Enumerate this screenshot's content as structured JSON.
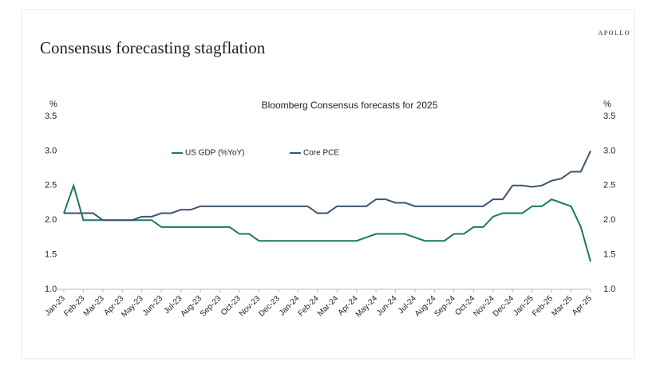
{
  "brand": "APOLLO",
  "chart_data": {
    "type": "line",
    "title": "Consensus forecasting stagflation",
    "subtitle": "Bloomberg Consensus forecasts for 2025",
    "y_unit": "%",
    "categories": [
      "Jan-23",
      null,
      "Feb-23",
      null,
      "Mar-23",
      null,
      "Apr-23",
      null,
      "May-23",
      null,
      "Jun-23",
      null,
      "Jul-23",
      null,
      "Aug-23",
      null,
      "Sep-23",
      null,
      "Oct-23",
      null,
      "Nov-23",
      null,
      "Dec-23",
      null,
      "Jan-24",
      null,
      "Feb-24",
      null,
      "Mar-24",
      null,
      "Apr-24",
      null,
      "May-24",
      null,
      "Jun-24",
      null,
      "Jul-24",
      null,
      "Aug-24",
      null,
      "Sep-24",
      null,
      "Oct-24",
      null,
      "Nov-24",
      null,
      "Dec-24",
      null,
      "Jan-25",
      null,
      "Feb-25",
      null,
      "Mar-25",
      null,
      "Apr-25"
    ],
    "series": [
      {
        "name": "US GDP (%YoY)",
        "color": "#1a7a5c",
        "values": [
          2.1,
          2.5,
          2.0,
          2.0,
          2.0,
          2.0,
          2.0,
          2.0,
          2.0,
          2.0,
          1.9,
          1.9,
          1.9,
          1.9,
          1.9,
          1.9,
          1.9,
          1.9,
          1.8,
          1.8,
          1.7,
          1.7,
          1.7,
          1.7,
          1.7,
          1.7,
          1.7,
          1.7,
          1.7,
          1.7,
          1.7,
          1.75,
          1.8,
          1.8,
          1.8,
          1.8,
          1.75,
          1.7,
          1.7,
          1.7,
          1.8,
          1.8,
          1.9,
          1.9,
          2.05,
          2.1,
          2.1,
          2.1,
          2.2,
          2.2,
          2.3,
          2.25,
          2.2,
          1.9,
          1.4
        ]
      },
      {
        "name": "Core PCE",
        "color": "#3d5470",
        "values": [
          2.1,
          2.1,
          2.1,
          2.1,
          2.0,
          2.0,
          2.0,
          2.0,
          2.05,
          2.05,
          2.1,
          2.1,
          2.15,
          2.15,
          2.2,
          2.2,
          2.2,
          2.2,
          2.2,
          2.2,
          2.2,
          2.2,
          2.2,
          2.2,
          2.2,
          2.2,
          2.1,
          2.1,
          2.2,
          2.2,
          2.2,
          2.2,
          2.3,
          2.3,
          2.25,
          2.25,
          2.2,
          2.2,
          2.2,
          2.2,
          2.2,
          2.2,
          2.2,
          2.2,
          2.3,
          2.3,
          2.5,
          2.5,
          2.48,
          2.5,
          2.57,
          2.6,
          2.7,
          2.7,
          3.0
        ]
      }
    ],
    "ylim": [
      1.0,
      3.5
    ],
    "yticks": [
      {
        "value": 1.0,
        "label": "1.0"
      },
      1.5,
      {
        "value": 2.0,
        "label": "2.0"
      },
      2.5,
      {
        "value": 3.0,
        "label": "3.0"
      },
      3.5
    ],
    "grid": false,
    "legend": "top"
  }
}
